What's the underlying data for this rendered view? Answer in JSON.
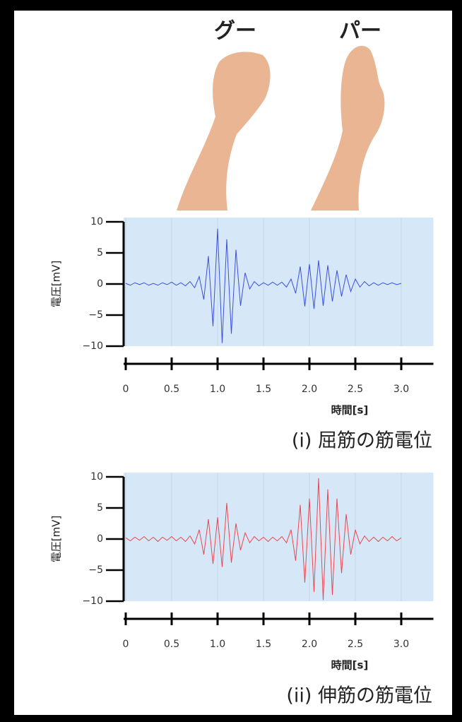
{
  "header": {
    "labels": [
      "グー",
      "パー"
    ]
  },
  "chart_data": [
    {
      "type": "line",
      "title": "(i) 屈筋の筋電位",
      "xlabel": "時間[s]",
      "ylabel": "電圧[mV]",
      "xlim": [
        0,
        3.35
      ],
      "ylim": [
        -10,
        10
      ],
      "xticks": [
        0,
        0.5,
        {
          "value": 1,
          "label": "1.0"
        },
        1.5,
        {
          "value": 2,
          "label": "2.0"
        },
        2.5,
        {
          "value": 3,
          "label": "3.0"
        }
      ],
      "yticks": [
        10,
        5,
        0,
        {
          "value": -5,
          "label": "−5"
        },
        {
          "value": -10,
          "label": "−10"
        }
      ],
      "grid": true,
      "x": [
        0,
        0.05,
        0.1,
        0.15,
        0.2,
        0.25,
        0.3,
        0.35,
        0.4,
        0.45,
        0.5,
        0.55,
        0.6,
        0.65,
        0.7,
        0.75,
        0.8,
        0.85,
        0.9,
        0.95,
        1,
        1.05,
        1.1,
        1.15,
        1.2,
        1.25,
        1.3,
        1.35,
        1.4,
        1.45,
        1.5,
        1.55,
        1.6,
        1.65,
        1.7,
        1.75,
        1.8,
        1.85,
        1.9,
        1.95,
        2,
        2.05,
        2.1,
        2.15,
        2.2,
        2.25,
        2.3,
        2.35,
        2.4,
        2.45,
        2.5,
        2.55,
        2.6,
        2.65,
        2.7,
        2.75,
        2.8,
        2.85,
        2.9,
        2.95,
        3
      ],
      "series": [
        {
          "color": "#3a4fe0",
          "values": [
            0.1,
            -0.2,
            0.2,
            -0.1,
            0.2,
            -0.2,
            0.1,
            -0.2,
            0.2,
            -0.1,
            0.3,
            -0.2,
            0.2,
            -0.3,
            0.4,
            -0.6,
            1.2,
            -2.5,
            4.5,
            -6.8,
            8.9,
            -9.5,
            7.2,
            -8.0,
            5.5,
            -3.5,
            1.8,
            -0.8,
            0.4,
            -0.3,
            0.2,
            -0.2,
            0.3,
            -0.2,
            0.3,
            -0.5,
            0.8,
            -1.5,
            2.8,
            -3.6,
            3.2,
            -4.0,
            3.8,
            -3.5,
            3.0,
            -2.8,
            2.2,
            -2.0,
            1.5,
            -1.2,
            0.8,
            -0.5,
            0.4,
            -0.3,
            0.2,
            -0.2,
            0.2,
            -0.1,
            0.2,
            -0.1,
            0.1
          ]
        }
      ]
    },
    {
      "type": "line",
      "title": "(ii) 伸筋の筋電位",
      "xlabel": "時間[s]",
      "ylabel": "電圧[mV]",
      "xlim": [
        0,
        3.35
      ],
      "ylim": [
        -10,
        10
      ],
      "xticks": [
        0,
        0.5,
        {
          "value": 1,
          "label": "1.0"
        },
        1.5,
        {
          "value": 2,
          "label": "2.0"
        },
        2.5,
        {
          "value": 3,
          "label": "3.0"
        }
      ],
      "yticks": [
        10,
        5,
        0,
        {
          "value": -5,
          "label": "−5"
        },
        {
          "value": -10,
          "label": "−10"
        }
      ],
      "grid": true,
      "x": [
        0,
        0.05,
        0.1,
        0.15,
        0.2,
        0.25,
        0.3,
        0.35,
        0.4,
        0.45,
        0.5,
        0.55,
        0.6,
        0.65,
        0.7,
        0.75,
        0.8,
        0.85,
        0.9,
        0.95,
        1,
        1.05,
        1.1,
        1.15,
        1.2,
        1.25,
        1.3,
        1.35,
        1.4,
        1.45,
        1.5,
        1.55,
        1.6,
        1.65,
        1.7,
        1.75,
        1.8,
        1.85,
        1.9,
        1.95,
        2,
        2.05,
        2.1,
        2.15,
        2.2,
        2.25,
        2.3,
        2.35,
        2.4,
        2.45,
        2.5,
        2.55,
        2.6,
        2.65,
        2.7,
        2.75,
        2.8,
        2.85,
        2.9,
        2.95,
        3
      ],
      "series": [
        {
          "color": "#e8484f",
          "values": [
            0.2,
            -0.3,
            0.3,
            -0.2,
            0.4,
            -0.3,
            0.3,
            -0.4,
            0.3,
            -0.2,
            0.4,
            -0.3,
            0.3,
            -0.4,
            0.5,
            -0.8,
            1.5,
            -2.5,
            3.2,
            -4.0,
            3.5,
            -4.5,
            5.8,
            -3.8,
            2.5,
            -1.8,
            1.0,
            -0.6,
            0.4,
            -0.3,
            0.3,
            -0.4,
            0.3,
            -0.3,
            0.4,
            -0.6,
            1.5,
            -3.5,
            5.5,
            -7.0,
            6.5,
            -8.5,
            9.8,
            -9.8,
            8.0,
            -9.0,
            6.5,
            -5.5,
            4.0,
            -2.5,
            1.5,
            -0.8,
            0.5,
            -0.4,
            0.3,
            -0.4,
            0.3,
            -0.3,
            0.4,
            -0.3,
            0.2
          ]
        }
      ]
    }
  ]
}
